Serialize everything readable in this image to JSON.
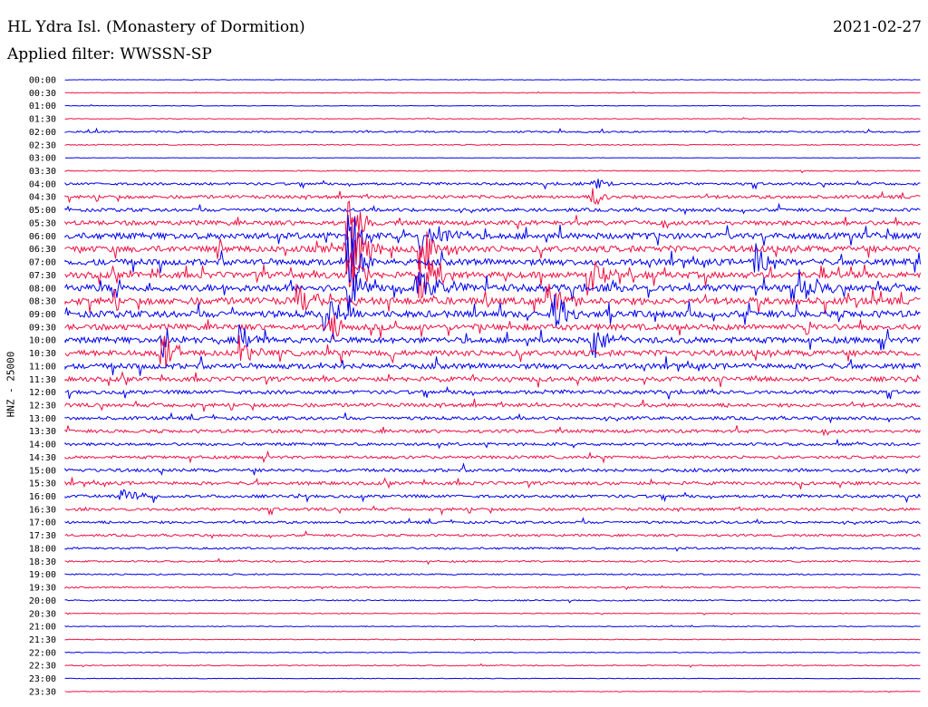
{
  "header": {
    "title": "HL Ydra Isl. (Monastery of Dormition)",
    "date": "2021-02-27",
    "filter": "Applied filter: WWSSN-SP"
  },
  "chart_data": {
    "type": "line",
    "title": "HL Ydra Isl. (Monastery of Dormition)",
    "subtitle": "Applied filter: WWSSN-SP",
    "date": "2021-02-27",
    "ylabel": "HNZ - 25000",
    "xlabel": "",
    "grid": false,
    "trace_colors": [
      "#0000ee",
      "#ee1144"
    ],
    "row_labels": [
      "00:00",
      "00:30",
      "01:00",
      "01:30",
      "02:00",
      "02:30",
      "03:00",
      "03:30",
      "04:00",
      "04:30",
      "05:00",
      "05:30",
      "06:00",
      "06:30",
      "07:00",
      "07:30",
      "08:00",
      "08:30",
      "09:00",
      "09:30",
      "10:00",
      "10:30",
      "11:00",
      "11:30",
      "12:00",
      "12:30",
      "13:00",
      "13:30",
      "14:00",
      "14:30",
      "15:00",
      "15:30",
      "16:00",
      "16:30",
      "17:00",
      "17:30",
      "18:00",
      "18:30",
      "19:00",
      "19:30",
      "20:00",
      "20:30",
      "21:00",
      "21:30",
      "22:00",
      "22:30",
      "23:00",
      "23:30"
    ],
    "activity_level": [
      0.2,
      0.3,
      0.3,
      0.3,
      0.8,
      0.5,
      0.2,
      0.5,
      1.2,
      1.6,
      1.6,
      2.2,
      3.0,
      3.0,
      3.0,
      3.0,
      3.4,
      3.4,
      3.2,
      2.8,
      2.8,
      2.8,
      2.6,
      2.2,
      1.8,
      1.8,
      1.6,
      1.6,
      1.4,
      1.4,
      1.6,
      1.6,
      1.4,
      1.4,
      1.2,
      1.1,
      1.0,
      0.8,
      0.7,
      0.7,
      0.6,
      0.4,
      0.4,
      0.4,
      0.4,
      0.5,
      0.3,
      0.3
    ]
  }
}
